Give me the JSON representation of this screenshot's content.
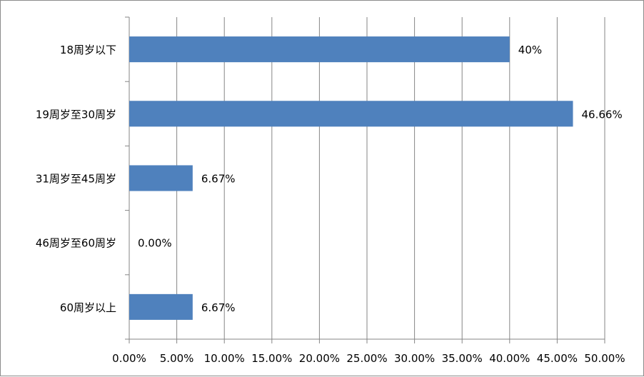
{
  "chart_data": {
    "type": "bar",
    "orientation": "horizontal",
    "categories": [
      "18周岁以下",
      "19周岁至30周岁",
      "31周岁至45周岁",
      "46周岁至60周岁",
      "60周岁以上"
    ],
    "values": [
      40,
      46.66,
      6.67,
      0,
      6.67
    ],
    "data_labels": [
      "40%",
      "46.66%",
      "6.67%",
      "0.00%",
      "6.67%"
    ],
    "x_ticks": [
      "0.00%",
      "5.00%",
      "10.00%",
      "15.00%",
      "20.00%",
      "25.00%",
      "30.00%",
      "35.00%",
      "40.00%",
      "45.00%",
      "50.00%"
    ],
    "xlim": [
      0,
      50
    ],
    "title": "",
    "xlabel": "",
    "ylabel": "",
    "grid": "vertical",
    "legend": "none",
    "bar_color": "#4f81bd",
    "gridline_color": "#868686"
  }
}
